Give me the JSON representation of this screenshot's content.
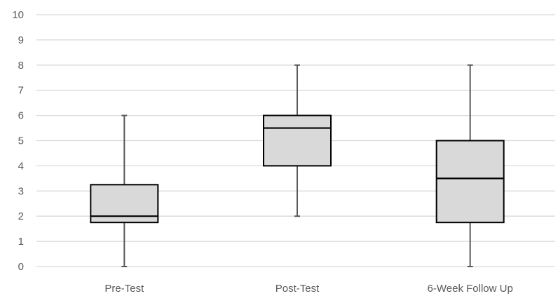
{
  "chart_data": {
    "type": "box",
    "title": "",
    "xlabel": "",
    "ylabel": "",
    "ylim": [
      0,
      10
    ],
    "yticks": [
      "0",
      "1",
      "2",
      "3",
      "4",
      "5",
      "6",
      "7",
      "8",
      "9",
      "10"
    ],
    "grid": true,
    "legend": "none",
    "colors": {
      "box_fill": "#d9d9d9",
      "box_stroke": "#000000",
      "whisker": "#595959",
      "grid": "#d9d9d9",
      "text": "#595959"
    },
    "categories": [
      "Pre-Test",
      "Post-Test",
      "6-Week Follow Up"
    ],
    "boxes": [
      {
        "category": "Pre-Test",
        "min": 0,
        "q1": 1.75,
        "median": 2,
        "q3": 3.25,
        "max": 6
      },
      {
        "category": "Post-Test",
        "min": 2,
        "q1": 4,
        "median": 5.5,
        "q3": 6,
        "max": 8
      },
      {
        "category": "6-Week Follow Up",
        "min": 0,
        "q1": 1.75,
        "median": 3.5,
        "q3": 5,
        "max": 8
      }
    ]
  }
}
